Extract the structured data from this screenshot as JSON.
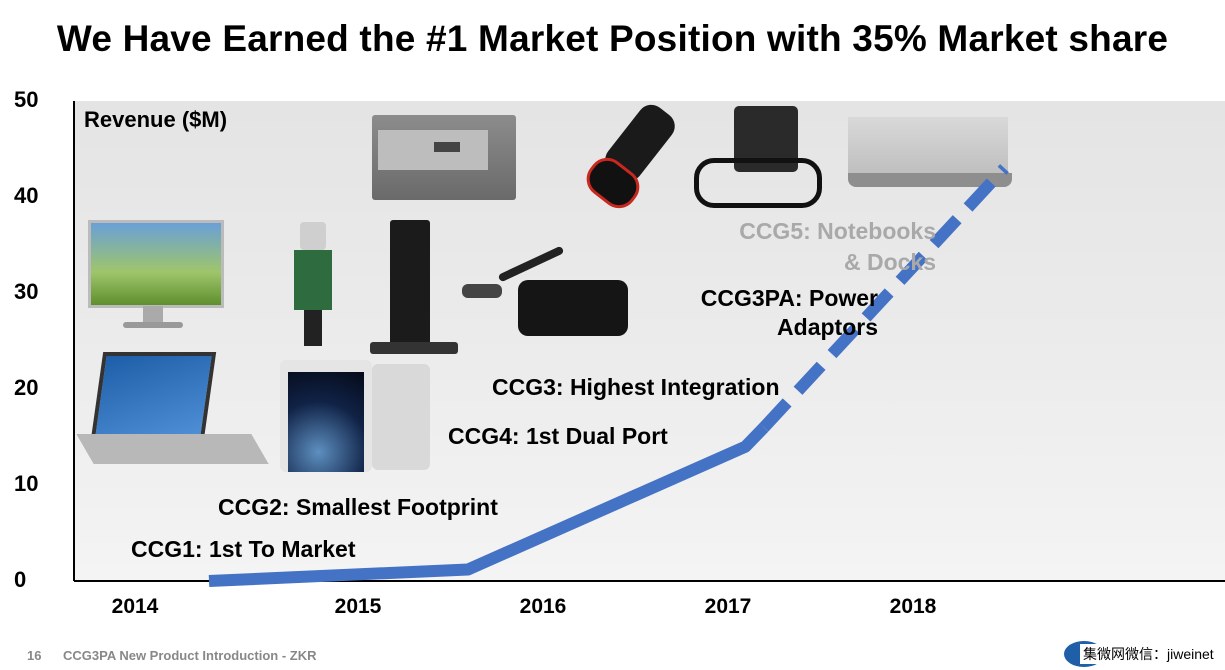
{
  "title": "We Have Earned the #1 Market Position with 35% Market share",
  "footer": {
    "page": "16",
    "text": "CCG3PA New Product Introduction - ZKR"
  },
  "watermark": "集微网微信：jiweinet",
  "colors": {
    "line": "#4472c4",
    "dashed": "#4472c4",
    "gray_label": "#a9a9a9"
  },
  "chart_data": {
    "type": "line",
    "ylabel": "Revenue ($M)",
    "xlabel": "",
    "ylim": [
      0,
      50
    ],
    "yticks": [
      "0",
      "10",
      "20",
      "30",
      "40",
      "50"
    ],
    "xticks": [
      "2014",
      "2015",
      "2016",
      "2017",
      "2018"
    ],
    "grid": false,
    "series": [
      {
        "style": "solid",
        "x": [
          2014.4,
          2015.8,
          2017.3,
          2017.4
        ],
        "y": [
          0,
          1.2,
          14,
          16
        ]
      },
      {
        "style": "dashed",
        "x": [
          2017.4,
          2018.7
        ],
        "y": [
          16,
          43
        ]
      }
    ],
    "annotations": [
      "CCG1: 1st To Market",
      "CCG2: Smallest Footprint",
      "CCG4: 1st Dual Port",
      "CCG3: Highest Integration",
      "CCG3PA: Power\nAdaptors",
      "CCG5: Notebooks\n& Docks"
    ]
  },
  "products": [
    "monitor-icon",
    "laptop-icon",
    "usb-c-module-icon",
    "mini-pc-icon",
    "phone-icon",
    "usb-c-adapter-icon",
    "notebook-ports-icon",
    "car-charger-icon",
    "wall-charger-icon",
    "macbook-icon"
  ],
  "logo": "cypress-logo-icon"
}
